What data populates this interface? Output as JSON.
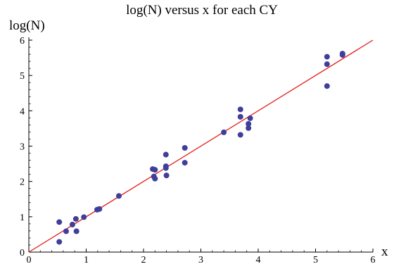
{
  "chart_data": {
    "type": "scatter",
    "title": "log(N) versus x for each CY",
    "xlabel": "x",
    "ylabel": "log(N)",
    "xlim": [
      0,
      6
    ],
    "ylim": [
      0,
      6
    ],
    "xticks": [
      0,
      1,
      2,
      3,
      4,
      5,
      6
    ],
    "yticks": [
      0,
      1,
      2,
      3,
      4,
      5,
      6
    ],
    "grid": false,
    "colors": {
      "points": "#3f3f9a",
      "fit_line": "#e81a1a",
      "axes": "#000000"
    },
    "series": [
      {
        "type": "scatter",
        "points": [
          [
            0.53,
            0.85
          ],
          [
            0.53,
            0.29
          ],
          [
            0.65,
            0.59
          ],
          [
            0.76,
            0.78
          ],
          [
            0.82,
            0.94
          ],
          [
            0.83,
            0.59
          ],
          [
            0.96,
            0.99
          ],
          [
            1.19,
            1.2
          ],
          [
            1.23,
            1.22
          ],
          [
            1.57,
            1.59
          ],
          [
            2.16,
            2.35
          ],
          [
            2.2,
            2.33
          ],
          [
            2.18,
            2.14
          ],
          [
            2.2,
            2.08
          ],
          [
            2.39,
            2.76
          ],
          [
            2.39,
            2.43
          ],
          [
            2.39,
            2.38
          ],
          [
            2.4,
            2.17
          ],
          [
            2.72,
            2.95
          ],
          [
            2.72,
            2.53
          ],
          [
            3.4,
            3.39
          ],
          [
            3.69,
            4.04
          ],
          [
            3.69,
            3.83
          ],
          [
            3.69,
            3.32
          ],
          [
            3.83,
            3.63
          ],
          [
            3.83,
            3.51
          ],
          [
            3.86,
            3.79
          ],
          [
            5.2,
            5.53
          ],
          [
            5.2,
            5.32
          ],
          [
            5.2,
            4.7
          ],
          [
            5.47,
            5.62
          ],
          [
            5.47,
            5.58
          ]
        ]
      },
      {
        "type": "line",
        "points": [
          [
            0,
            0
          ],
          [
            6,
            6
          ]
        ]
      }
    ]
  }
}
